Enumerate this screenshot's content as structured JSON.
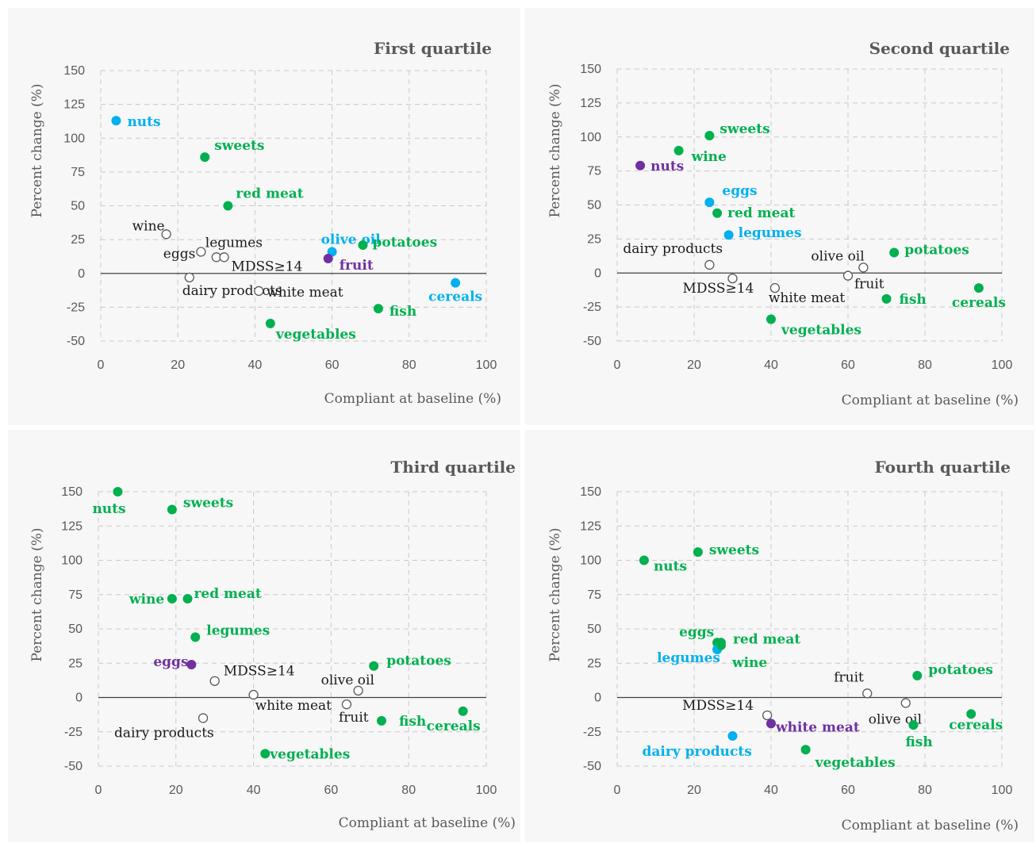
{
  "colors": {
    "green": "#00b050",
    "blue": "#00b0f0",
    "purple": "#7030a0",
    "hollow_fill": "#ffffff",
    "hollow_stroke": "#595959",
    "black_label": "#1a1a1a",
    "grid": "#c8c8c8",
    "axis_text": "#595959"
  },
  "chart_data": [
    {
      "type": "scatter",
      "title": "First quartile",
      "xlabel": "Compliant at baseline (%)",
      "ylabel": "Percent change (%)",
      "xlim": [
        0,
        100
      ],
      "ylim": [
        -50,
        150
      ],
      "xticks": [
        0,
        20,
        40,
        60,
        80,
        100
      ],
      "yticks": [
        -50,
        -25,
        0,
        25,
        50,
        75,
        100,
        125,
        150
      ],
      "grid": true,
      "points": [
        {
          "label": "nuts",
          "x": 4,
          "y": 113,
          "color": "blue"
        },
        {
          "label": "sweets",
          "x": 27,
          "y": 86,
          "color": "green"
        },
        {
          "label": "red meat",
          "x": 33,
          "y": 50,
          "color": "green"
        },
        {
          "label": "wine",
          "x": 17,
          "y": 29,
          "color": "hollow"
        },
        {
          "label": "legumes",
          "x": 30,
          "y": 12,
          "color": "hollow"
        },
        {
          "label": "eggs",
          "x": 26,
          "y": 16,
          "color": "hollow"
        },
        {
          "label": "MDSS≥14",
          "x": 32,
          "y": 12,
          "color": "hollow"
        },
        {
          "label": "olive oil",
          "x": 60,
          "y": 16,
          "color": "blue"
        },
        {
          "label": "potatoes",
          "x": 68,
          "y": 21,
          "color": "green"
        },
        {
          "label": "fruit",
          "x": 59,
          "y": 11,
          "color": "purple"
        },
        {
          "label": "dairy products",
          "x": 23,
          "y": -3,
          "color": "hollow"
        },
        {
          "label": "white meat",
          "x": 41,
          "y": -13,
          "color": "hollow"
        },
        {
          "label": "cereals",
          "x": 92,
          "y": -7,
          "color": "blue"
        },
        {
          "label": "fish",
          "x": 72,
          "y": -26,
          "color": "green"
        },
        {
          "label": "vegetables",
          "x": 44,
          "y": -37,
          "color": "green"
        }
      ]
    },
    {
      "type": "scatter",
      "title": "Second quartile",
      "xlabel": "Compliant at baseline (%)",
      "ylabel": "Percent change (%)",
      "xlim": [
        0,
        100
      ],
      "ylim": [
        -50,
        150
      ],
      "xticks": [
        0,
        20,
        40,
        60,
        80,
        100
      ],
      "yticks": [
        -50,
        -25,
        0,
        25,
        50,
        75,
        100,
        125,
        150
      ],
      "grid": true,
      "points": [
        {
          "label": "sweets",
          "x": 24,
          "y": 101,
          "color": "green"
        },
        {
          "label": "wine",
          "x": 16,
          "y": 90,
          "color": "green"
        },
        {
          "label": "nuts",
          "x": 6,
          "y": 79,
          "color": "purple"
        },
        {
          "label": "eggs",
          "x": 24,
          "y": 52,
          "color": "blue"
        },
        {
          "label": "red meat",
          "x": 26,
          "y": 44,
          "color": "green"
        },
        {
          "label": "legumes",
          "x": 29,
          "y": 28,
          "color": "blue"
        },
        {
          "label": "dairy products",
          "x": 24,
          "y": 6,
          "color": "hollow"
        },
        {
          "label": "MDSS≥14",
          "x": 30,
          "y": -4,
          "color": "hollow"
        },
        {
          "label": "white meat",
          "x": 41,
          "y": -11,
          "color": "hollow"
        },
        {
          "label": "olive oil",
          "x": 64,
          "y": 4,
          "color": "hollow"
        },
        {
          "label": "fruit",
          "x": 60,
          "y": -2,
          "color": "hollow"
        },
        {
          "label": "potatoes",
          "x": 72,
          "y": 15,
          "color": "green"
        },
        {
          "label": "fish",
          "x": 70,
          "y": -19,
          "color": "green"
        },
        {
          "label": "cereals",
          "x": 94,
          "y": -11,
          "color": "green"
        },
        {
          "label": "vegetables",
          "x": 40,
          "y": -34,
          "color": "green"
        }
      ]
    },
    {
      "type": "scatter",
      "title": "Third quartile",
      "xlabel": "Compliant at baseline (%)",
      "ylabel": "Percent change (%)",
      "xlim": [
        0,
        100
      ],
      "ylim": [
        -50,
        150
      ],
      "xticks": [
        0,
        20,
        40,
        60,
        80,
        100
      ],
      "yticks": [
        -50,
        -25,
        0,
        25,
        50,
        75,
        100,
        125,
        150
      ],
      "grid": true,
      "points": [
        {
          "label": "nuts",
          "x": 5,
          "y": 150,
          "color": "green"
        },
        {
          "label": "sweets",
          "x": 19,
          "y": 137,
          "color": "green"
        },
        {
          "label": "wine",
          "x": 19,
          "y": 72,
          "color": "green"
        },
        {
          "label": "red meat",
          "x": 23,
          "y": 72,
          "color": "green"
        },
        {
          "label": "legumes",
          "x": 25,
          "y": 44,
          "color": "green"
        },
        {
          "label": "eggs",
          "x": 24,
          "y": 24,
          "color": "purple"
        },
        {
          "label": "MDSS≥14",
          "x": 30,
          "y": 12,
          "color": "hollow"
        },
        {
          "label": "white meat",
          "x": 40,
          "y": 2,
          "color": "hollow"
        },
        {
          "label": "dairy products",
          "x": 27,
          "y": -15,
          "color": "hollow"
        },
        {
          "label": "olive oil",
          "x": 67,
          "y": 5,
          "color": "hollow"
        },
        {
          "label": "fruit",
          "x": 64,
          "y": -5,
          "color": "hollow"
        },
        {
          "label": "potatoes",
          "x": 71,
          "y": 23,
          "color": "green"
        },
        {
          "label": "fish",
          "x": 73,
          "y": -17,
          "color": "green"
        },
        {
          "label": "cereals",
          "x": 94,
          "y": -10,
          "color": "green"
        },
        {
          "label": "vegetables",
          "x": 43,
          "y": -41,
          "color": "green"
        }
      ]
    },
    {
      "type": "scatter",
      "title": "Fourth quartile",
      "xlabel": "Compliant at baseline (%)",
      "ylabel": "Percent change (%)",
      "xlim": [
        0,
        100
      ],
      "ylim": [
        -50,
        150
      ],
      "xticks": [
        0,
        20,
        40,
        60,
        80,
        100
      ],
      "yticks": [
        -50,
        -25,
        0,
        25,
        50,
        75,
        100,
        125,
        150
      ],
      "grid": true,
      "points": [
        {
          "label": "nuts",
          "x": 7,
          "y": 100,
          "color": "green"
        },
        {
          "label": "sweets",
          "x": 21,
          "y": 106,
          "color": "green"
        },
        {
          "label": "eggs",
          "x": 26,
          "y": 40,
          "color": "green"
        },
        {
          "label": "red meat",
          "x": 27,
          "y": 40,
          "color": "green"
        },
        {
          "label": "legumes",
          "x": 26,
          "y": 35,
          "color": "blue"
        },
        {
          "label": "wine",
          "x": 27,
          "y": 38,
          "color": "green"
        },
        {
          "label": "fruit",
          "x": 65,
          "y": 3,
          "color": "hollow"
        },
        {
          "label": "olive oil",
          "x": 75,
          "y": -4,
          "color": "hollow"
        },
        {
          "label": "potatoes",
          "x": 78,
          "y": 16,
          "color": "green"
        },
        {
          "label": "MDSS≥14",
          "x": 39,
          "y": -13,
          "color": "hollow"
        },
        {
          "label": "white meat",
          "x": 40,
          "y": -19,
          "color": "purple"
        },
        {
          "label": "dairy products",
          "x": 30,
          "y": -28,
          "color": "blue"
        },
        {
          "label": "vegetables",
          "x": 49,
          "y": -38,
          "color": "green"
        },
        {
          "label": "fish",
          "x": 77,
          "y": -20,
          "color": "green"
        },
        {
          "label": "cereals",
          "x": 92,
          "y": -12,
          "color": "green"
        }
      ]
    }
  ]
}
